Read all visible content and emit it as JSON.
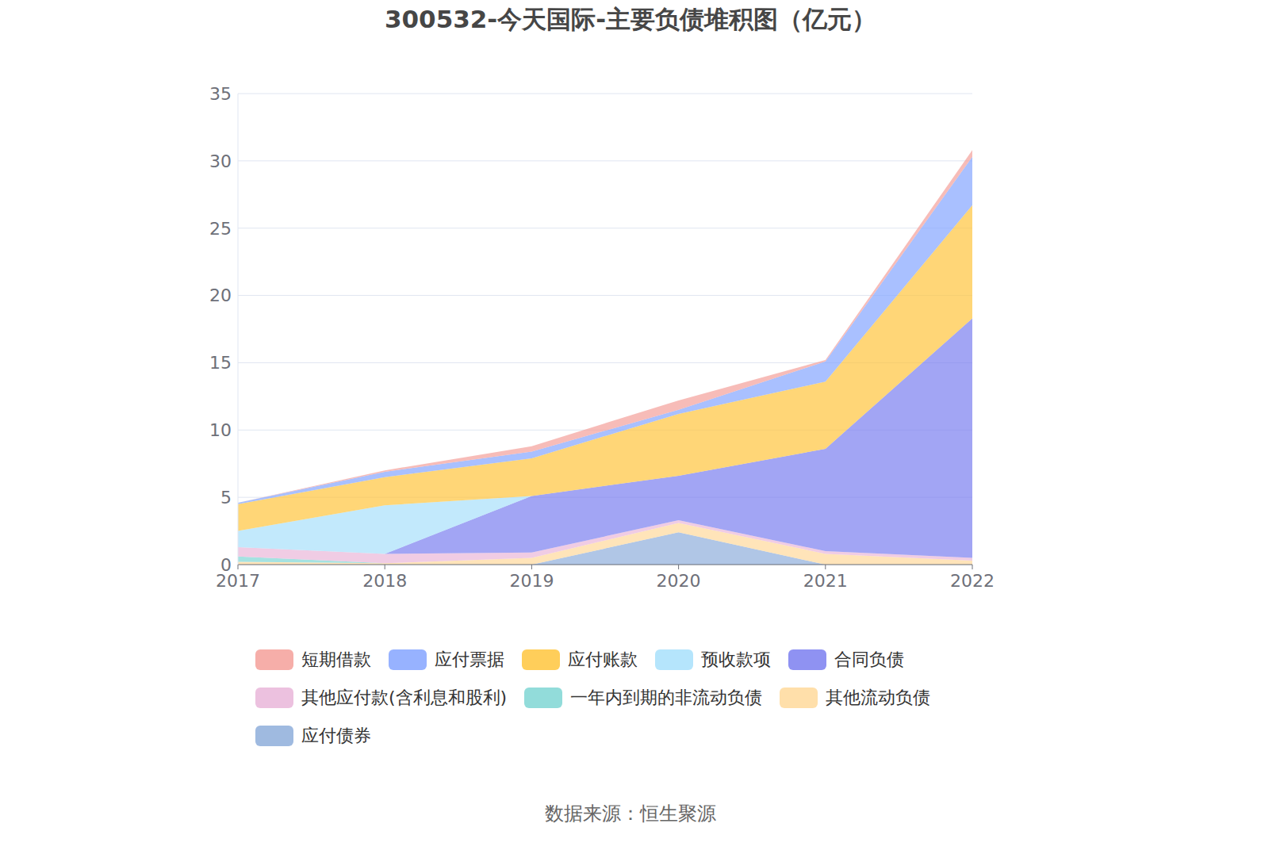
{
  "chart_data": {
    "type": "area",
    "title": "300532-今天国际-主要负债堆积图（亿元）",
    "subtitle": "数据来源：恒生聚源",
    "stacked": true,
    "grid": true,
    "categories": [
      "2017",
      "2018",
      "2019",
      "2020",
      "2021",
      "2022"
    ],
    "ylim": [
      0,
      35
    ],
    "yticks": [
      0,
      5,
      10,
      15,
      20,
      25,
      30,
      35
    ],
    "series": [
      {
        "name": "短期借款",
        "color": "#f4a09a",
        "values": [
          0,
          0.1,
          0.4,
          0.7,
          0.1,
          0.5
        ]
      },
      {
        "name": "应付票据",
        "color": "#85a5ff",
        "values": [
          0.1,
          0.4,
          0.5,
          0.3,
          1.5,
          3.6
        ]
      },
      {
        "name": "应付账款",
        "color": "#ffc53d",
        "values": [
          2.0,
          2.1,
          2.8,
          4.6,
          5.0,
          8.4
        ]
      },
      {
        "name": "预收款项",
        "color": "#a8e0fb",
        "values": [
          1.2,
          3.6,
          0,
          0,
          0,
          0
        ]
      },
      {
        "name": "合同负债",
        "color": "#7b7ff0",
        "values": [
          0,
          0,
          4.2,
          3.3,
          7.6,
          17.8
        ]
      },
      {
        "name": "其他应付款(含利息和股利)",
        "color": "#e9b6d9",
        "values": [
          0.7,
          0.7,
          0.4,
          0.2,
          0.2,
          0.2
        ]
      },
      {
        "name": "一年内到期的非流动负债",
        "color": "#7fd6d4",
        "values": [
          0.4,
          0,
          0,
          0,
          0,
          0
        ]
      },
      {
        "name": "其他流动负债",
        "color": "#ffd99b",
        "values": [
          0.2,
          0.1,
          0.5,
          0.7,
          0.8,
          0.3
        ]
      },
      {
        "name": "应付债券",
        "color": "#8eaedb",
        "values": [
          0,
          0,
          0,
          2.4,
          0,
          0
        ]
      }
    ]
  }
}
